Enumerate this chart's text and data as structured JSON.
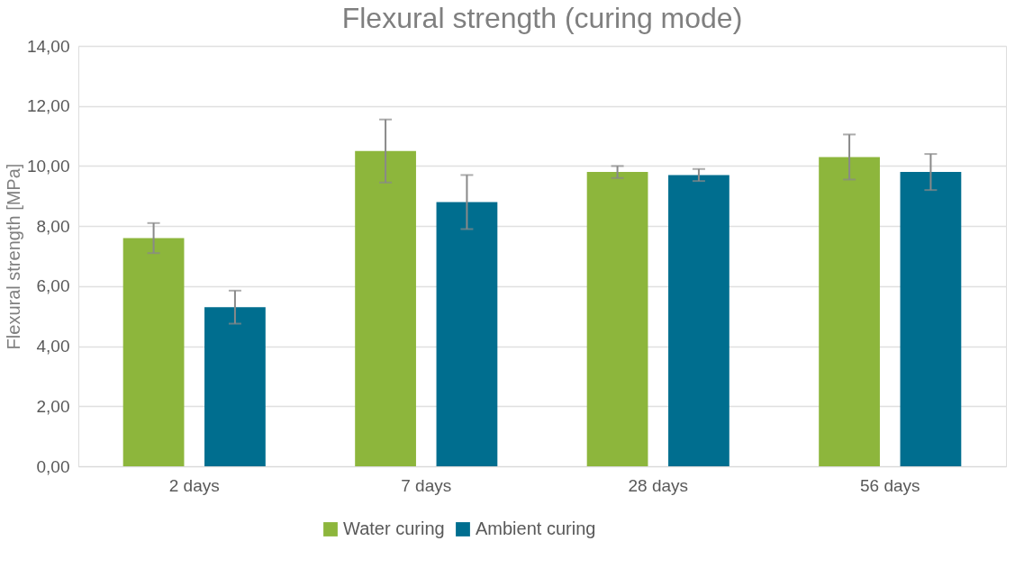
{
  "chart_data": {
    "type": "bar",
    "title": "Flexural strength (curing mode)",
    "ylabel": "Flexural strength [MPa]",
    "categories": [
      "2 days",
      "7 days",
      "28 days",
      "56 days"
    ],
    "series": [
      {
        "name": "Water curing",
        "color": "#8db63c",
        "values": [
          7.6,
          10.5,
          9.8,
          10.3
        ],
        "errors": [
          0.5,
          1.05,
          0.2,
          0.75
        ]
      },
      {
        "name": "Ambient curing",
        "color": "#006e8f",
        "values": [
          5.3,
          8.8,
          9.7,
          9.8
        ],
        "errors": [
          0.55,
          0.9,
          0.2,
          0.6
        ]
      }
    ],
    "ylim": [
      0,
      14
    ],
    "yticks": [
      {
        "value": 0,
        "label": "0,00"
      },
      {
        "value": 2,
        "label": "2,00"
      },
      {
        "value": 4,
        "label": "4,00"
      },
      {
        "value": 6,
        "label": "6,00"
      },
      {
        "value": 8,
        "label": "8,00"
      },
      {
        "value": 10,
        "label": "10,00"
      },
      {
        "value": 12,
        "label": "12,00"
      },
      {
        "value": 14,
        "label": "14,00"
      }
    ],
    "grid": "y",
    "legend": "bottom"
  }
}
